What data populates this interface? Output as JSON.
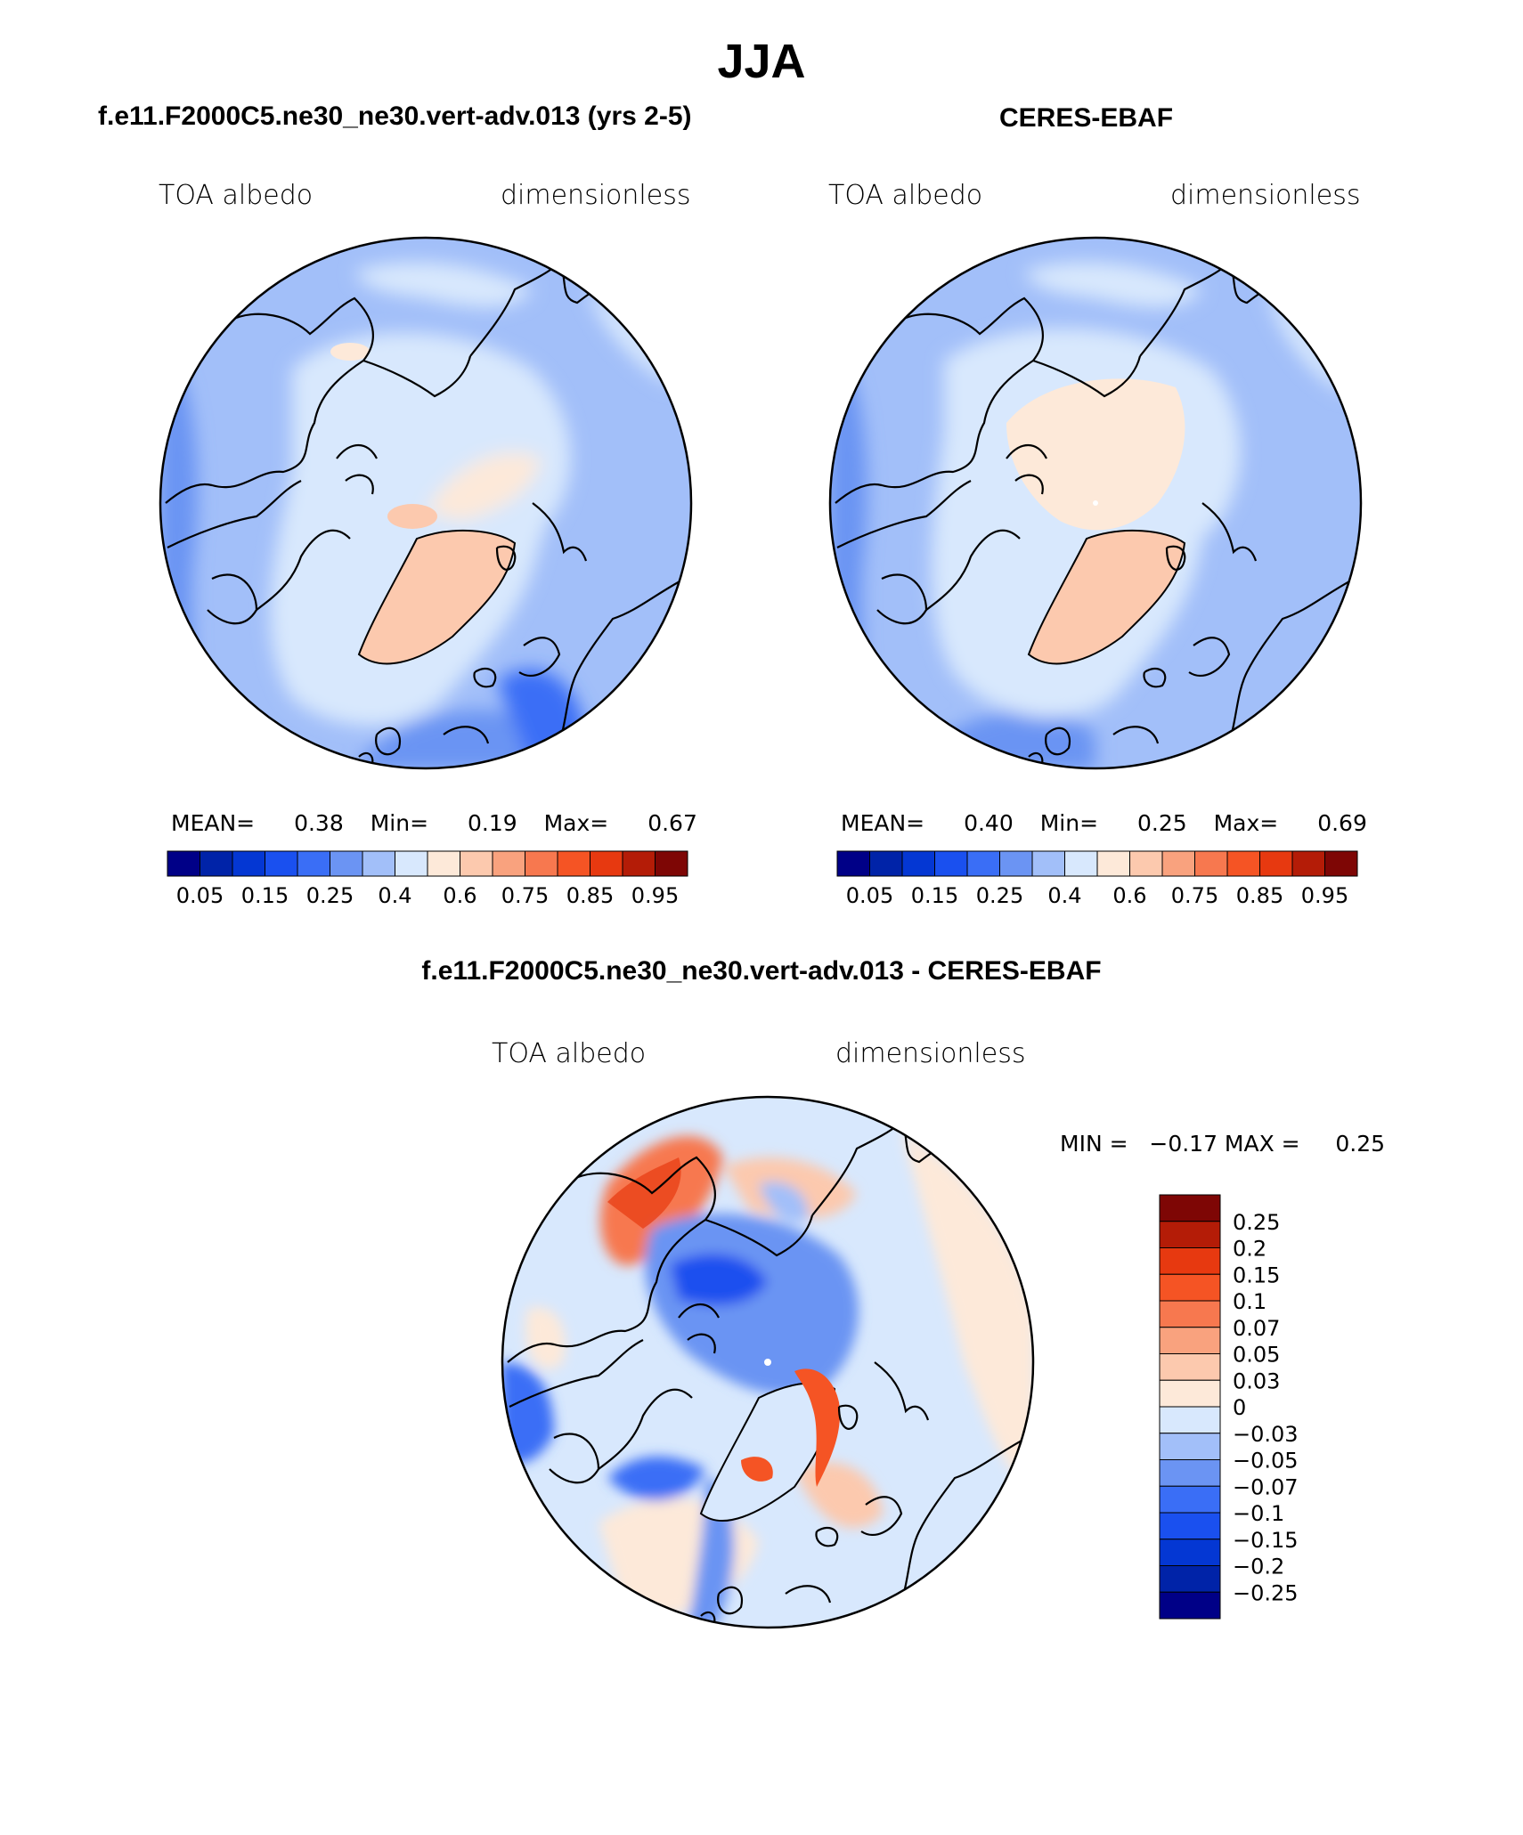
{
  "page": {
    "title": "JJA",
    "model_title": "f.e11.F2000C5.ne30_ne30.vert-adv.013 (yrs 2-5)",
    "obs_title": "CERES-EBAF",
    "diff_title": "f.e11.F2000C5.ne30_ne30.vert-adv.013 - CERES-EBAF"
  },
  "panels": {
    "model": {
      "variable": "TOA albedo",
      "units": "dimensionless",
      "mean_label": "MEAN=",
      "mean_value": "0.38",
      "min_label": "Min=",
      "min_value": "0.19",
      "max_label": "Max=",
      "max_value": "0.67"
    },
    "obs": {
      "variable": "TOA albedo",
      "units": "dimensionless",
      "mean_label": "MEAN=",
      "mean_value": "0.40",
      "min_label": "Min=",
      "min_value": "0.25",
      "max_label": "Max=",
      "max_value": "0.69"
    },
    "diff": {
      "variable": "TOA albedo",
      "units": "dimensionless",
      "minmax": "MIN =   −0.17 MAX =     0.25"
    }
  },
  "colorbars": {
    "abs_colors": [
      "#000087",
      "#0023a8",
      "#0437d3",
      "#1a50ef",
      "#3a6ef6",
      "#6b94f3",
      "#a2bff9",
      "#d8e8fd",
      "#fde9d9",
      "#fcc9ae",
      "#f9a27e",
      "#f7784f",
      "#f55424",
      "#e73910",
      "#b41c07",
      "#7e0605"
    ],
    "abs_ticks": [
      "0.05",
      "0.15",
      "0.25",
      "0.4",
      "0.6",
      "0.75",
      "0.85",
      "0.95"
    ],
    "diff_colors_top_to_bottom": [
      "#7e0605",
      "#b41c07",
      "#e73910",
      "#f55424",
      "#f7784f",
      "#f9a27e",
      "#fcc9ae",
      "#fde9d9",
      "#d8e8fd",
      "#a2bff9",
      "#6b94f3",
      "#3a6ef6",
      "#1a50ef",
      "#0437d3",
      "#0023a8",
      "#000087"
    ],
    "diff_ticks": [
      "0.25",
      "0.2",
      "0.15",
      "0.1",
      "0.07",
      "0.05",
      "0.03",
      "0",
      "−0.03",
      "−0.05",
      "−0.07",
      "−0.1",
      "−0.15",
      "−0.2",
      "−0.25"
    ]
  }
}
